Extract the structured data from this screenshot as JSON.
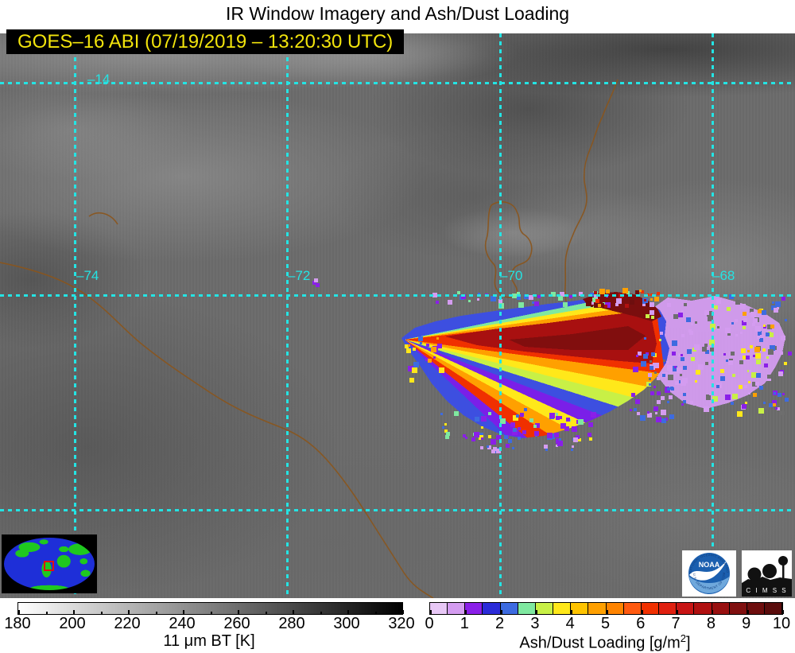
{
  "title": "IR Window Imagery and Ash/Dust Loading",
  "banner": {
    "text": "GOES–16 ABI (07/19/2019 – 13:20:30 UTC)"
  },
  "map": {
    "grid": {
      "lat_labels": [
        "–14"
      ],
      "lon_labels": [
        "–74",
        "–72",
        "–70",
        "–68"
      ],
      "line_color": "#24E4E4"
    },
    "border_color": "#8B551B"
  },
  "inset_globe": {
    "ocean_color": "#1E2FD8",
    "land_color": "#1FC81F",
    "marker_color": "#E01010"
  },
  "logos": {
    "noaa": {
      "name": "NOAA",
      "ring_text_top": "NATIONAL OCEANIC AND ATMOSPHERIC ADMINISTRATION",
      "ring_text_bottom": "U.S. DEPARTMENT OF COMMERCE"
    },
    "cimss": {
      "name": "C I M S S"
    }
  },
  "colorbars": {
    "bt": {
      "ticks": [
        "180",
        "200",
        "220",
        "240",
        "260",
        "280",
        "300",
        "320"
      ],
      "label": "11 μm BT [K]",
      "range": [
        180,
        320
      ]
    },
    "ash": {
      "ticks": [
        "0",
        "1",
        "2",
        "3",
        "4",
        "5",
        "6",
        "7",
        "8",
        "9",
        "10"
      ],
      "label_main": "Ash/Dust Loading [g/m",
      "label_sup": "2",
      "label_close": "]",
      "range": [
        0,
        10
      ],
      "segment_colors": [
        "#E8C8F6",
        "#D49CF0",
        "#8A1FE8",
        "#2B2BD8",
        "#3D6BE0",
        "#7FE8A0",
        "#C8F046",
        "#FFE81A",
        "#FFC400",
        "#FFA000",
        "#FF8400",
        "#FF5A10",
        "#F03000",
        "#E02010",
        "#C81414",
        "#B01010",
        "#981010",
        "#801010",
        "#6E0E0E",
        "#5A0C0C"
      ]
    }
  }
}
